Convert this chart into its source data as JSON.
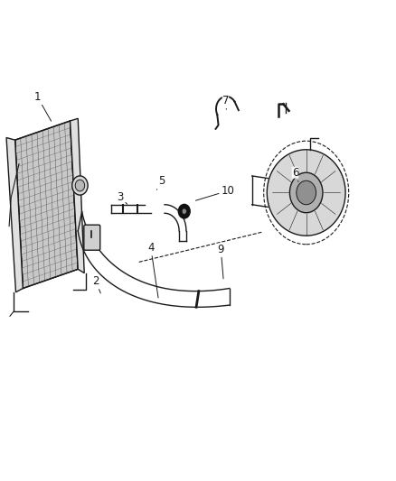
{
  "bg_color": "#ffffff",
  "fig_width": 4.38,
  "fig_height": 5.33,
  "dpi": 100,
  "line_color": "#1a1a1a",
  "label_color": "#1a1a1a",
  "label_fontsize": 8.5
}
